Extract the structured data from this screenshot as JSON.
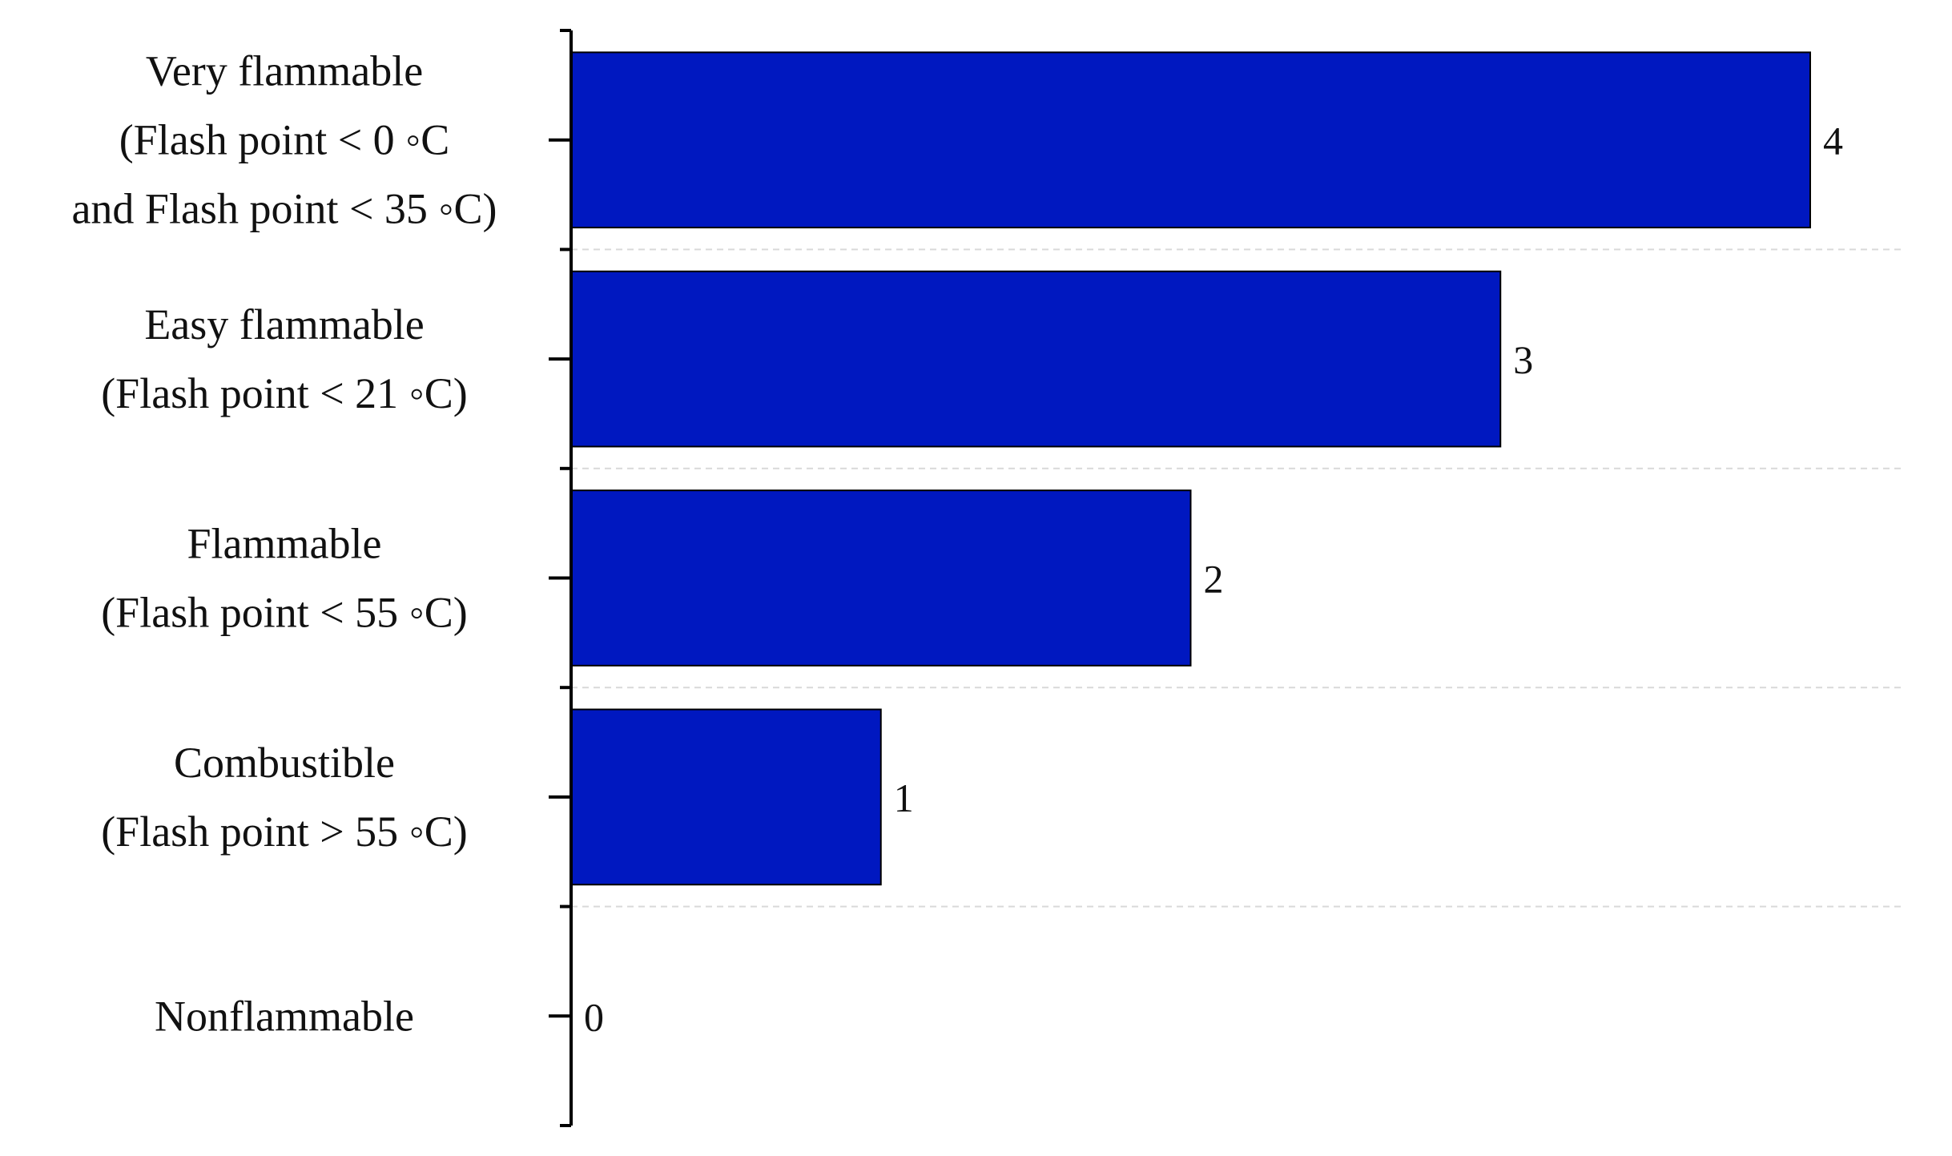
{
  "chart_data": {
    "type": "bar",
    "orientation": "horizontal",
    "categories": [
      [
        "Very flammable",
        "(Flash point < 0 ◦C",
        "and Flash point < 35 ◦C)"
      ],
      [
        "Easy flammable",
        "(Flash point < 21 ◦C)"
      ],
      [
        "Flammable",
        "(Flash point < 55 ◦C)"
      ],
      [
        "Combustible",
        "(Flash point > 55 ◦C)"
      ],
      [
        "Nonflammable"
      ]
    ],
    "values": [
      4,
      3,
      2,
      1,
      0
    ],
    "data_labels": [
      "4",
      "3",
      "2",
      "1",
      "0"
    ],
    "xlim": [
      0,
      4.3
    ],
    "bar_color": "#0018C0",
    "bar_edge_color": "#000000",
    "axis_color": "#000000",
    "grid": "dashed horizontal separators between categories",
    "grid_color": "#d9d9d9",
    "legend": "none",
    "title": "",
    "xlabel": "",
    "ylabel": ""
  }
}
